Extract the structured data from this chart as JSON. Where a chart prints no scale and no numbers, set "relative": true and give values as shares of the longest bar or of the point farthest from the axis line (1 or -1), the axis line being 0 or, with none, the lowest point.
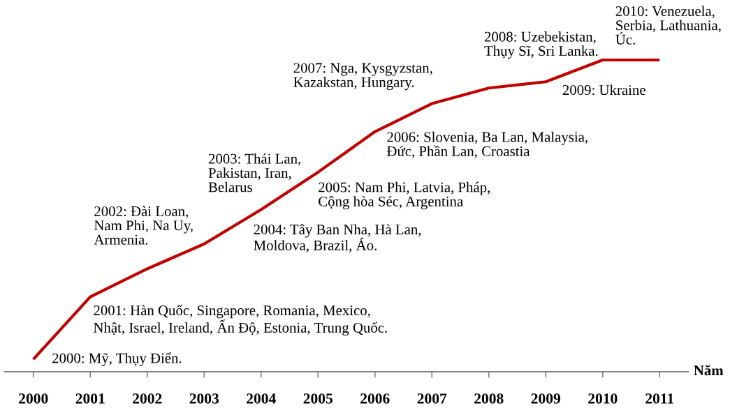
{
  "chart_data": {
    "type": "line",
    "relative": true,
    "color": "#c00000",
    "line_style": "solid",
    "tick_labels": "x",
    "xlabel": "Năm",
    "categories": [
      "2000",
      "2001",
      "2002",
      "2003",
      "2004",
      "2005",
      "2006",
      "2007",
      "2008",
      "2009",
      "2010",
      "2011"
    ],
    "values": [
      0.04,
      0.24,
      0.33,
      0.41,
      0.52,
      0.64,
      0.77,
      0.86,
      0.91,
      0.93,
      1,
      1
    ],
    "annotations": [
      {
        "text": "2000: Mỹ, Thụy Điển.",
        "x": "2000",
        "y": 0.04
      },
      {
        "text": "2001: Hàn Quốc, Singapore, Romania, Mexico,\nNhật, Israel, Ireland, Ấn Độ, Estonia, Trung Quốc.",
        "x": "2001",
        "y": 0.24
      },
      {
        "text": "2002: Đài Loan,\nNam Phi, Na Uy,\nArmenia.",
        "x": "2002",
        "y": 0.33
      },
      "2003: Thái Lan,\nPakistan, Iran,\nBelarus",
      {
        "text": "2004: Tây Ban Nha, Hà Lan,\nMoldova, Brazil, Áo.",
        "x": "2004",
        "y": 0.52
      },
      {
        "text": "2005: Nam Phi, Latvia, Pháp,\nCộng hòa Séc, Argentina",
        "x": "2005",
        "y": 0.64
      },
      {
        "text": "2006: Slovenia, Ba Lan, Malaysia,\nĐức, Phần Lan, Croastia",
        "x": "2006",
        "y": 0.77
      },
      {
        "text": "2007: Nga, Kysgyzstan,\nKazakstan, Hungary.",
        "x": "2007",
        "y": 0.86
      },
      "2008: Uzebekistan,\nThụy Sĩ, Sri Lanka.",
      {
        "text": "2009: Ukraine",
        "x": "2009",
        "y": 0.93
      },
      {
        "text": "2010: Venezuela,\nSerbia, Lathuania,\nÚc.",
        "x": "2010",
        "y": 1
      }
    ]
  }
}
